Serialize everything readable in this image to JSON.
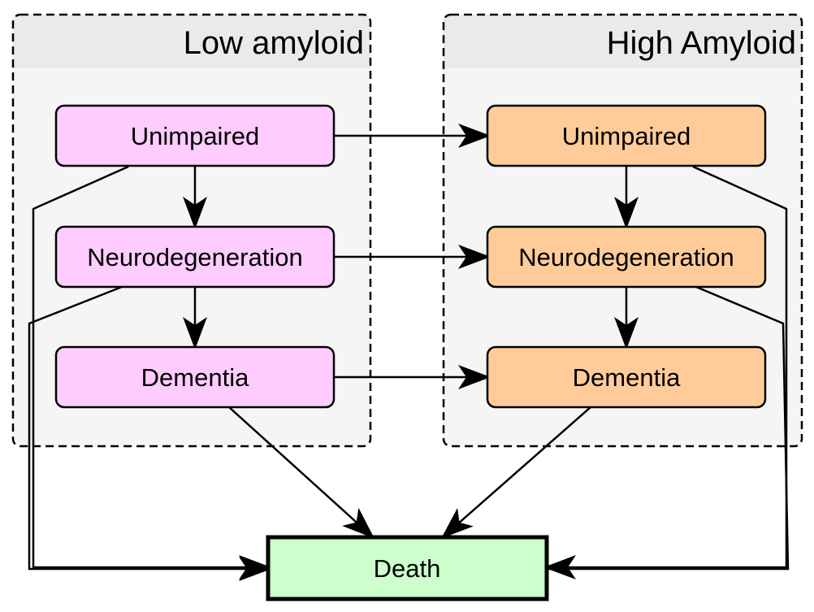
{
  "groups": {
    "low": {
      "title": "Low amyloid"
    },
    "high": {
      "title": "High Amyloid"
    }
  },
  "nodes": {
    "low_unimpaired": "Unimpaired",
    "low_neurodegeneration": "Neurodegeneration",
    "low_dementia": "Dementia",
    "high_unimpaired": "Unimpaired",
    "high_neurodegeneration": "Neurodegeneration",
    "high_dementia": "Dementia",
    "death": "Death"
  },
  "colors": {
    "group_fill": "#f5f5f5",
    "group_header": "#eaeaea",
    "low_fill": "#ffccff",
    "high_fill": "#ffcc99",
    "death_fill": "#ccffcc",
    "stroke": "#000000"
  }
}
